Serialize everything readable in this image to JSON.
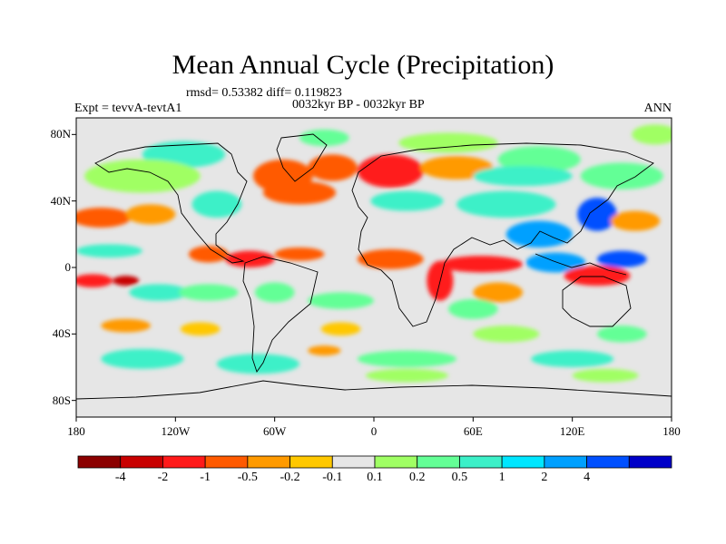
{
  "title": "Mean Annual Cycle (Precipitation)",
  "stats_line": "rmsd= 0.53382  diff= 0.119823",
  "period_line": "0032kyr BP - 0032kyr BP",
  "experiment_label": "Expt = tevvA-tevtA1",
  "season_label": "ANN",
  "map": {
    "lon_range": [
      -180,
      180
    ],
    "lat_range": [
      -90,
      90
    ],
    "lat_ticks": [
      {
        "value": 80,
        "label": "80N"
      },
      {
        "value": 40,
        "label": "40N"
      },
      {
        "value": 0,
        "label": "0"
      },
      {
        "value": -40,
        "label": "40S"
      },
      {
        "value": -80,
        "label": "80S"
      }
    ],
    "lon_ticks": [
      {
        "value": -180,
        "label": "180"
      },
      {
        "value": -120,
        "label": "120W"
      },
      {
        "value": -60,
        "label": "60W"
      },
      {
        "value": 0,
        "label": "0"
      },
      {
        "value": 60,
        "label": "60E"
      },
      {
        "value": 120,
        "label": "120E"
      },
      {
        "value": 180,
        "label": "180"
      }
    ],
    "background_color": "#e6e6e6"
  },
  "colorbar": {
    "colors": [
      "#8b0000",
      "#c80000",
      "#ff1a1a",
      "#ff5a00",
      "#ff9a00",
      "#ffc800",
      "#e6e6e6",
      "#a0ff64",
      "#64ff96",
      "#3cf0c8",
      "#00e6ff",
      "#00a0ff",
      "#0050ff",
      "#0000c8"
    ],
    "labels": [
      "-4",
      "-2",
      "-1",
      "-0.5",
      "-0.2",
      "-0.1",
      "0.1",
      "0.2",
      "0.5",
      "1",
      "2",
      "4"
    ]
  },
  "anomaly_regions": [
    {
      "lon": 170,
      "lat": 80,
      "rx": 14,
      "ry": 6,
      "cat": 7
    },
    {
      "lon": -30,
      "lat": 78,
      "rx": 15,
      "ry": 5,
      "cat": 8
    },
    {
      "lon": 45,
      "lat": 75,
      "rx": 30,
      "ry": 6,
      "cat": 7
    },
    {
      "lon": 100,
      "lat": 65,
      "rx": 25,
      "ry": 8,
      "cat": 8
    },
    {
      "lon": -115,
      "lat": 68,
      "rx": 25,
      "ry": 8,
      "cat": 9
    },
    {
      "lon": -140,
      "lat": 55,
      "rx": 35,
      "ry": 10,
      "cat": 7
    },
    {
      "lon": 150,
      "lat": 55,
      "rx": 25,
      "ry": 8,
      "cat": 8
    },
    {
      "lon": -55,
      "lat": 55,
      "rx": 18,
      "ry": 10,
      "cat": 3
    },
    {
      "lon": -25,
      "lat": 60,
      "rx": 15,
      "ry": 8,
      "cat": 3
    },
    {
      "lon": -45,
      "lat": 45,
      "rx": 22,
      "ry": 7,
      "cat": 3
    },
    {
      "lon": 10,
      "lat": 58,
      "rx": 20,
      "ry": 10,
      "cat": 2
    },
    {
      "lon": 50,
      "lat": 60,
      "rx": 22,
      "ry": 7,
      "cat": 4
    },
    {
      "lon": 90,
      "lat": 55,
      "rx": 30,
      "ry": 6,
      "cat": 9
    },
    {
      "lon": -95,
      "lat": 38,
      "rx": 15,
      "ry": 8,
      "cat": 9
    },
    {
      "lon": -165,
      "lat": 30,
      "rx": 18,
      "ry": 6,
      "cat": 3
    },
    {
      "lon": -135,
      "lat": 32,
      "rx": 15,
      "ry": 6,
      "cat": 4
    },
    {
      "lon": 20,
      "lat": 40,
      "rx": 22,
      "ry": 6,
      "cat": 9
    },
    {
      "lon": 80,
      "lat": 38,
      "rx": 30,
      "ry": 8,
      "cat": 9
    },
    {
      "lon": 135,
      "lat": 32,
      "rx": 12,
      "ry": 10,
      "cat": 12
    },
    {
      "lon": 158,
      "lat": 28,
      "rx": 15,
      "ry": 6,
      "cat": 4
    },
    {
      "lon": 100,
      "lat": 20,
      "rx": 20,
      "ry": 8,
      "cat": 11
    },
    {
      "lon": -160,
      "lat": 10,
      "rx": 20,
      "ry": 4,
      "cat": 9
    },
    {
      "lon": -100,
      "lat": 8,
      "rx": 12,
      "ry": 5,
      "cat": 3
    },
    {
      "lon": -75,
      "lat": 5,
      "rx": 15,
      "ry": 5,
      "cat": 2
    },
    {
      "lon": -45,
      "lat": 8,
      "rx": 15,
      "ry": 4,
      "cat": 3
    },
    {
      "lon": -60,
      "lat": -15,
      "rx": 12,
      "ry": 6,
      "cat": 8
    },
    {
      "lon": 10,
      "lat": 5,
      "rx": 20,
      "ry": 6,
      "cat": 3
    },
    {
      "lon": 40,
      "lat": -8,
      "rx": 8,
      "ry": 12,
      "cat": 2
    },
    {
      "lon": 65,
      "lat": 2,
      "rx": 25,
      "ry": 5,
      "cat": 2
    },
    {
      "lon": 75,
      "lat": -15,
      "rx": 15,
      "ry": 6,
      "cat": 4
    },
    {
      "lon": 110,
      "lat": 3,
      "rx": 18,
      "ry": 6,
      "cat": 11
    },
    {
      "lon": 135,
      "lat": -5,
      "rx": 20,
      "ry": 6,
      "cat": 2
    },
    {
      "lon": 150,
      "lat": 5,
      "rx": 15,
      "ry": 5,
      "cat": 12
    },
    {
      "lon": -170,
      "lat": -8,
      "rx": 12,
      "ry": 4,
      "cat": 2
    },
    {
      "lon": -150,
      "lat": -8,
      "rx": 8,
      "ry": 3,
      "cat": 1
    },
    {
      "lon": -130,
      "lat": -15,
      "rx": 18,
      "ry": 5,
      "cat": 9
    },
    {
      "lon": -100,
      "lat": -15,
      "rx": 18,
      "ry": 5,
      "cat": 8
    },
    {
      "lon": -20,
      "lat": -20,
      "rx": 20,
      "ry": 5,
      "cat": 8
    },
    {
      "lon": 60,
      "lat": -25,
      "rx": 15,
      "ry": 6,
      "cat": 8
    },
    {
      "lon": -150,
      "lat": -35,
      "rx": 15,
      "ry": 4,
      "cat": 4
    },
    {
      "lon": -105,
      "lat": -37,
      "rx": 12,
      "ry": 4,
      "cat": 5
    },
    {
      "lon": -20,
      "lat": -37,
      "rx": 12,
      "ry": 4,
      "cat": 5
    },
    {
      "lon": 80,
      "lat": -40,
      "rx": 20,
      "ry": 5,
      "cat": 7
    },
    {
      "lon": 150,
      "lat": -40,
      "rx": 15,
      "ry": 5,
      "cat": 8
    },
    {
      "lon": -140,
      "lat": -55,
      "rx": 25,
      "ry": 6,
      "cat": 9
    },
    {
      "lon": -70,
      "lat": -58,
      "rx": 25,
      "ry": 6,
      "cat": 9
    },
    {
      "lon": 20,
      "lat": -55,
      "rx": 30,
      "ry": 5,
      "cat": 8
    },
    {
      "lon": 120,
      "lat": -55,
      "rx": 25,
      "ry": 5,
      "cat": 9
    },
    {
      "lon": -30,
      "lat": -50,
      "rx": 10,
      "ry": 3,
      "cat": 4
    },
    {
      "lon": 20,
      "lat": -65,
      "rx": 25,
      "ry": 4,
      "cat": 7
    },
    {
      "lon": 140,
      "lat": -65,
      "rx": 20,
      "ry": 4,
      "cat": 7
    }
  ]
}
